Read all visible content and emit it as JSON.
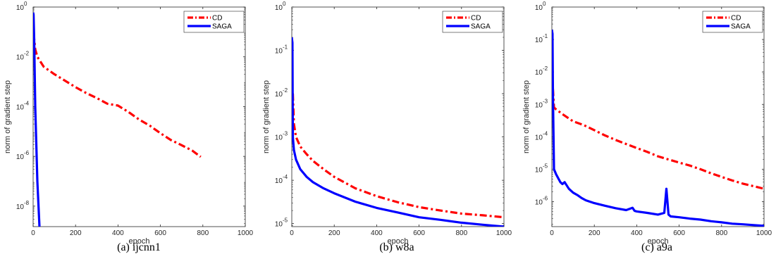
{
  "colors": {
    "cd": "#ff0000",
    "saga": "#0000ff",
    "axis": "#262626"
  },
  "chart_data": [
    {
      "type": "line",
      "caption": "(a) ijcnn1",
      "xlabel": "epoch",
      "ylabel": "norm of gradient step",
      "xlim": [
        0,
        1000
      ],
      "ylim": [
        1.5e-09,
        1
      ],
      "yscale": "log",
      "xticks": [
        "0",
        "200",
        "400",
        "600",
        "800",
        "1000"
      ],
      "yticks": [
        {
          "value": 1,
          "label": "10",
          "exp": "0"
        },
        {
          "value": 0.01,
          "label": "10",
          "exp": "-2"
        },
        {
          "value": 0.0001,
          "label": "10",
          "exp": "-4"
        },
        {
          "value": 1e-06,
          "label": "10",
          "exp": "-6"
        },
        {
          "value": 1e-08,
          "label": "10",
          "exp": "-8"
        }
      ],
      "legend": {
        "position": "top-right"
      },
      "series": [
        {
          "name": "CD",
          "style": "dashdot",
          "x": [
            2,
            10,
            20,
            50,
            100,
            150,
            200,
            250,
            300,
            350,
            400,
            450,
            500,
            550,
            600,
            650,
            700,
            750,
            790
          ],
          "y": [
            0.09,
            0.02,
            0.01,
            0.004,
            0.002,
            0.0011,
            0.0006,
            0.00035,
            0.00022,
            0.00013,
            0.00011,
            6e-05,
            3e-05,
            1.7e-05,
            8.5e-06,
            4.5e-06,
            2.8e-06,
            1.7e-06,
            9.5e-07
          ]
        },
        {
          "name": "SAGA",
          "style": "solid",
          "x": [
            0,
            2,
            5,
            10,
            20,
            30
          ],
          "y": [
            0.6,
            0.5,
            0.05,
            0.0001,
            1e-07,
            1.5e-09
          ]
        }
      ]
    },
    {
      "type": "line",
      "caption": "(b) w8a",
      "xlabel": "epoch",
      "ylabel": "norm of gradient step",
      "xlim": [
        0,
        1000
      ],
      "ylim": [
        8.5e-06,
        1
      ],
      "yscale": "log",
      "xticks": [
        "0",
        "200",
        "400",
        "600",
        "800",
        "1000"
      ],
      "yticks": [
        {
          "value": 1,
          "label": "10",
          "exp": "0"
        },
        {
          "value": 0.1,
          "label": "10",
          "exp": "-1"
        },
        {
          "value": 0.01,
          "label": "10",
          "exp": "-2"
        },
        {
          "value": 0.001,
          "label": "10",
          "exp": "-3"
        },
        {
          "value": 0.0001,
          "label": "10",
          "exp": "-4"
        },
        {
          "value": 1e-05,
          "label": "10",
          "exp": "-5"
        }
      ],
      "legend": {
        "position": "top-right"
      },
      "series": [
        {
          "name": "CD",
          "style": "dashdot",
          "x": [
            5,
            10,
            20,
            40,
            70,
            100,
            150,
            200,
            300,
            400,
            500,
            600,
            700,
            800,
            900,
            1000
          ],
          "y": [
            0.01,
            0.002,
            0.001,
            0.0006,
            0.0004,
            0.00028,
            0.00018,
            0.00012,
            6.5e-05,
            4.3e-05,
            3.1e-05,
            2.4e-05,
            2e-05,
            1.7e-05,
            1.55e-05,
            1.4e-05
          ]
        },
        {
          "name": "SAGA",
          "style": "solid",
          "x": [
            0,
            3,
            5,
            10,
            20,
            40,
            70,
            100,
            150,
            200,
            300,
            400,
            500,
            600,
            700,
            800,
            900,
            1000
          ],
          "y": [
            0.2,
            0.15,
            0.001,
            0.0005,
            0.0003,
            0.00018,
            0.00012,
            9e-05,
            6.5e-05,
            5e-05,
            3.2e-05,
            2.3e-05,
            1.8e-05,
            1.4e-05,
            1.22e-05,
            1.05e-05,
            9.4e-06,
            8.5e-06
          ]
        }
      ]
    },
    {
      "type": "line",
      "caption": "(c) a9a",
      "xlabel": "epoch",
      "ylabel": "norm of gradient step",
      "xlim": [
        0,
        1000
      ],
      "ylim": [
        1.7e-07,
        1
      ],
      "yscale": "log",
      "xticks": [
        "0",
        "200",
        "400",
        "600",
        "800",
        "1000"
      ],
      "yticks": [
        {
          "value": 1,
          "label": "10",
          "exp": "0"
        },
        {
          "value": 0.1,
          "label": "10",
          "exp": "-1"
        },
        {
          "value": 0.01,
          "label": "10",
          "exp": "-2"
        },
        {
          "value": 0.001,
          "label": "10",
          "exp": "-3"
        },
        {
          "value": 0.0001,
          "label": "10",
          "exp": "-4"
        },
        {
          "value": 1e-05,
          "label": "10",
          "exp": "-5"
        },
        {
          "value": 1e-06,
          "label": "10",
          "exp": "-6"
        }
      ],
      "legend": {
        "position": "top-right"
      },
      "series": [
        {
          "name": "CD",
          "style": "dashdot",
          "x": [
            5,
            10,
            20,
            50,
            100,
            150,
            200,
            250,
            300,
            350,
            400,
            450,
            500,
            550,
            600,
            650,
            700,
            750,
            800,
            850,
            900,
            950,
            1000
          ],
          "y": [
            0.003,
            0.0008,
            0.0007,
            0.0005,
            0.0003,
            0.00023,
            0.00016,
            0.00011,
            8e-05,
            6e-05,
            4.5e-05,
            3.4e-05,
            2.5e-05,
            2e-05,
            1.6e-05,
            1.3e-05,
            1e-05,
            7.5e-06,
            5.8e-06,
            4.5e-06,
            3.6e-06,
            3e-06,
            2.5e-06
          ]
        },
        {
          "name": "SAGA",
          "style": "solid",
          "x": [
            0,
            3,
            5,
            10,
            20,
            40,
            50,
            60,
            80,
            100,
            120,
            140,
            160,
            200,
            250,
            300,
            350,
            380,
            390,
            400,
            450,
            500,
            530,
            540,
            550,
            560,
            600,
            650,
            700,
            750,
            800,
            850,
            900,
            950,
            1000
          ],
          "y": [
            0.2,
            0.15,
            0.002,
            1e-05,
            7e-06,
            4e-06,
            3.5e-06,
            4e-06,
            2.5e-06,
            1.9e-06,
            1.6e-06,
            1.3e-06,
            1.1e-06,
            9e-07,
            7.5e-07,
            6.3e-07,
            5.5e-07,
            6.5e-07,
            5.2e-07,
            5e-07,
            4.5e-07,
            4e-07,
            4.5e-07,
            2.5e-06,
            4e-07,
            3.5e-07,
            3.3e-07,
            3e-07,
            2.8e-07,
            2.5e-07,
            2.3e-07,
            2.1e-07,
            2e-07,
            1.9e-07,
            1.8e-07
          ]
        }
      ]
    }
  ]
}
